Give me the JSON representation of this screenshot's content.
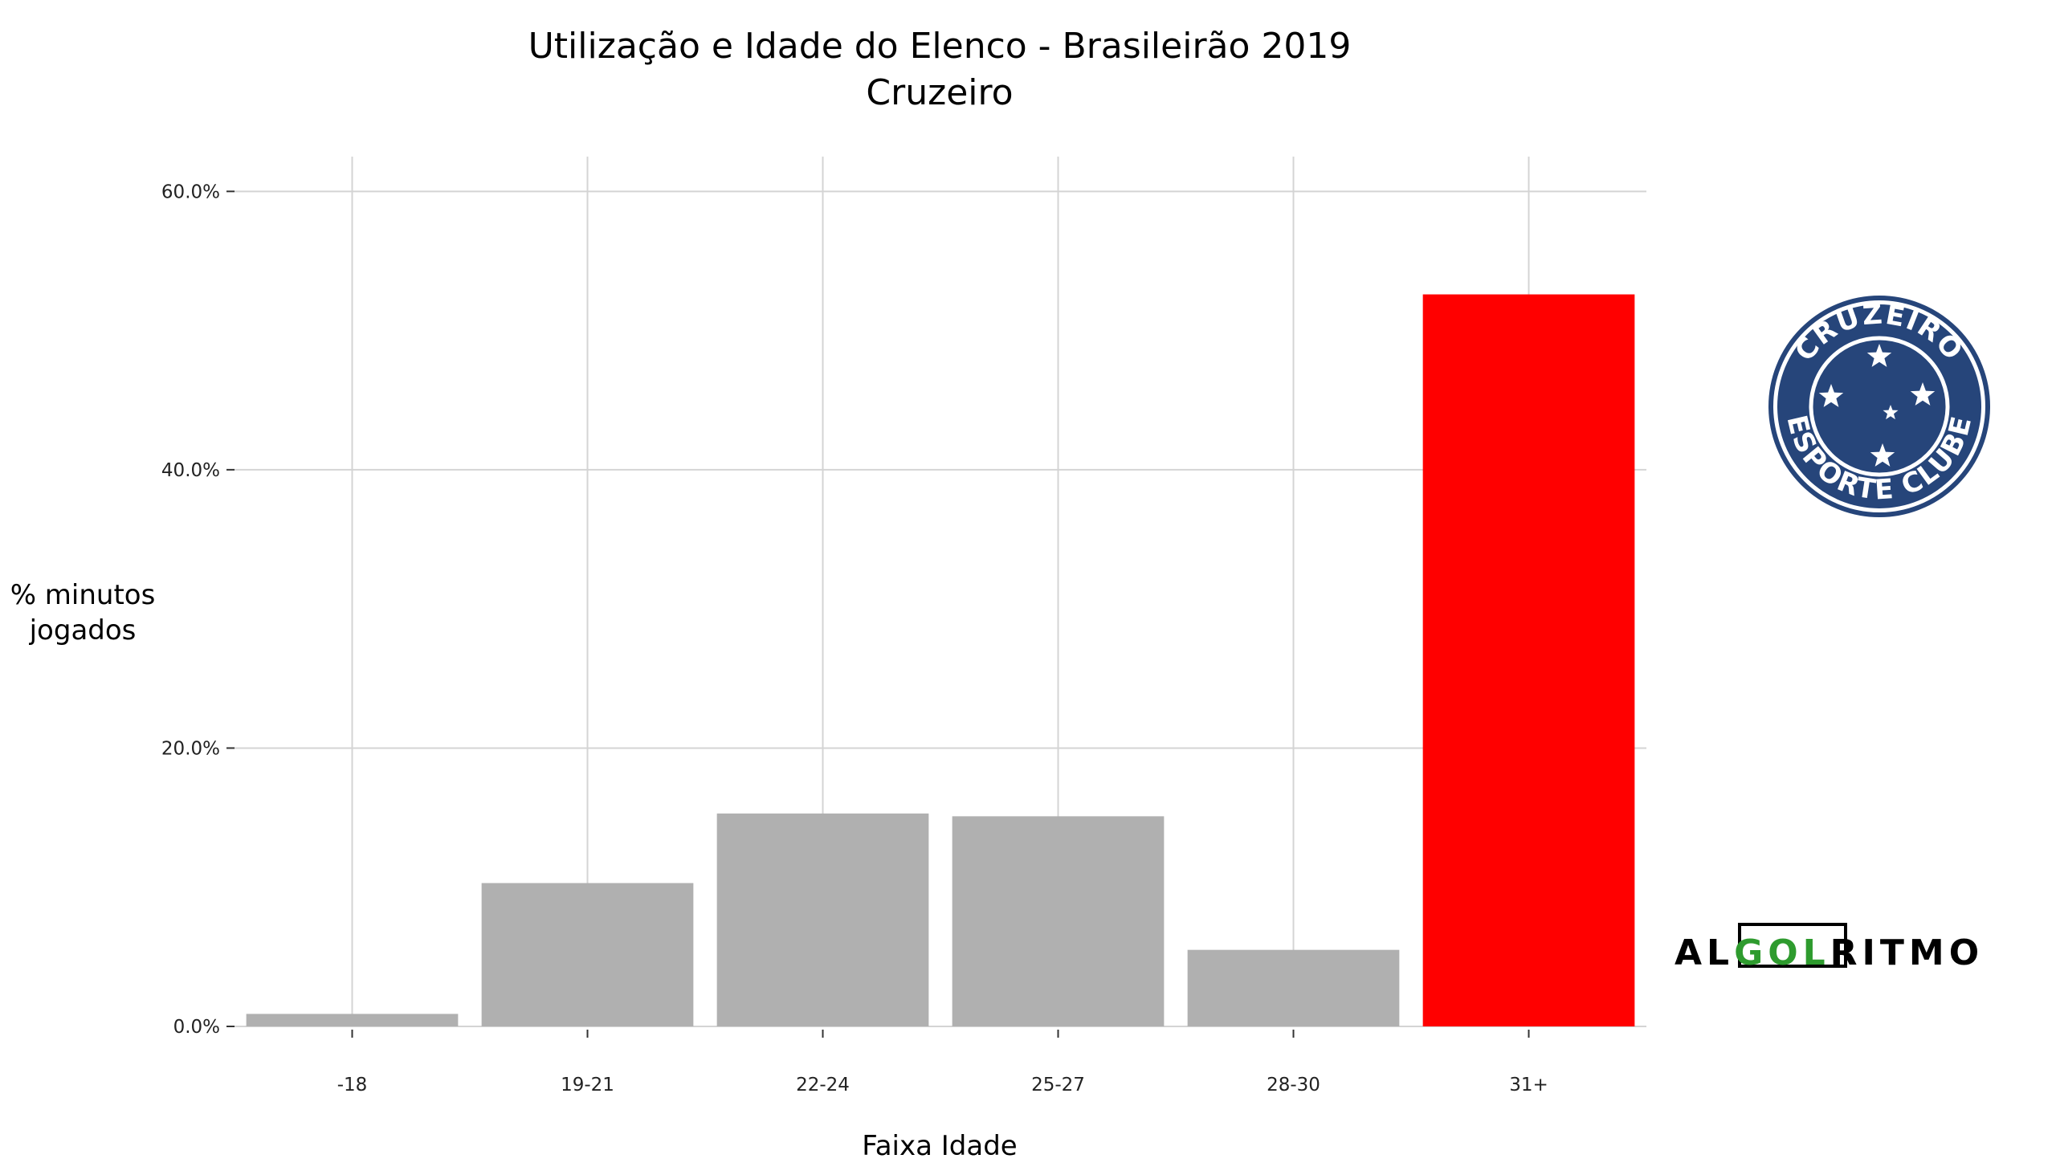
{
  "chart_data": {
    "type": "bar",
    "title": "Utilização e Idade do Elenco - Brasileirão 2019",
    "subtitle": "Cruzeiro",
    "xlabel": "Faixa Idade",
    "ylabel_lines": [
      "% minutos",
      "jogados"
    ],
    "categories": [
      "-18",
      "19-21",
      "22-24",
      "25-27",
      "28-30",
      "31+"
    ],
    "values": [
      0.9,
      10.3,
      15.3,
      15.1,
      5.5,
      52.6
    ],
    "value_unit": "%",
    "ylim": [
      0,
      62.5
    ],
    "yticks": [
      0,
      20,
      40,
      60
    ],
    "ytick_labels": [
      "0.0%",
      "20.0%",
      "40.0%",
      "60.0%"
    ],
    "grid": true,
    "legend": "none",
    "colors": {
      "default_bar": "#b0b0b0",
      "highlight_bar": "#ff0000",
      "highlight_category": "31+",
      "grid": "#d4d4d4"
    }
  },
  "club_crest": {
    "icon": "cruzeiro-crest-icon",
    "top_text": "CRUZEIRO",
    "bottom_text": "ESPORTE CLUBE",
    "colors": {
      "primary": "#26457a",
      "secondary": "#ffffff"
    }
  },
  "brand_logo": {
    "icon": "algolritmo-logo",
    "text_left": "AL",
    "text_highlight": "GOL",
    "text_right": "RITMO",
    "colors": {
      "text": "#000000",
      "highlight": "#2e9b2e"
    }
  }
}
